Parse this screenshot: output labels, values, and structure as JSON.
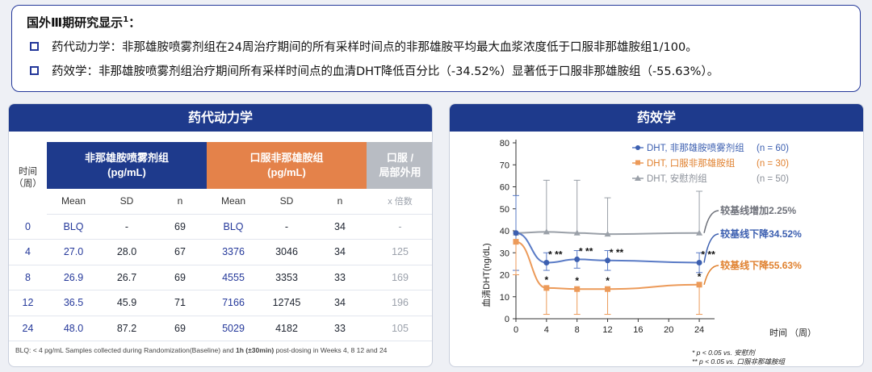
{
  "summary": {
    "title": "国外Ⅲ期研究显示",
    "title_sup": "1",
    "title_colon": "：",
    "bullets": [
      "药代动力学：非那雄胺喷雾剂组在24周治疗期间的所有采样时间点的非那雄胺平均最大血浆浓度低于口服非那雄胺组1/100。",
      "药效学：非那雄胺喷雾剂组治疗期间所有采样时间点的血清DHT降低百分比（-34.52%）显著低于口服非那雄胺组（-55.63%）。"
    ]
  },
  "pk": {
    "title": "药代动力学",
    "time_header": [
      "时间",
      "（周）"
    ],
    "group_spray": [
      "非那雄胺喷雾剂组",
      "(pg/mL)"
    ],
    "group_oral": [
      "口服非那雄胺组",
      "(pg/mL)"
    ],
    "group_ratio": [
      "口服 /",
      "局部外用"
    ],
    "subheaders": [
      "Mean",
      "SD",
      "n",
      "Mean",
      "SD",
      "n",
      "x 倍数"
    ],
    "rows": [
      {
        "time": "0",
        "s_mean": "BLQ",
        "s_sd": "-",
        "s_n": "69",
        "o_mean": "BLQ",
        "o_sd": "-",
        "o_n": "34",
        "ratio": "-"
      },
      {
        "time": "4",
        "s_mean": "27.0",
        "s_sd": "28.0",
        "s_n": "67",
        "o_mean": "3376",
        "o_sd": "3046",
        "o_n": "34",
        "ratio": "125"
      },
      {
        "time": "8",
        "s_mean": "26.9",
        "s_sd": "26.7",
        "s_n": "69",
        "o_mean": "4555",
        "o_sd": "3353",
        "o_n": "33",
        "ratio": "169"
      },
      {
        "time": "12",
        "s_mean": "36.5",
        "s_sd": "45.9",
        "s_n": "71",
        "o_mean": "7166",
        "o_sd": "12745",
        "o_n": "34",
        "ratio": "196"
      },
      {
        "time": "24",
        "s_mean": "48.0",
        "s_sd": "87.2",
        "s_n": "69",
        "o_mean": "5029",
        "o_sd": "4182",
        "o_n": "33",
        "ratio": "105"
      }
    ],
    "footnote_a": "BLQ: < 4 pg/mL Samples collected during Randomization(Baseline) and ",
    "footnote_b": "1h (±30min)",
    "footnote_c": " post-dosing in Weeks 4, 8 12 and 24"
  },
  "pd": {
    "title": "药效学",
    "ylabel": "血清DHT(ng/dL)",
    "xlabel": "时间  （周）",
    "footnote1": "* p < 0.05 vs. 安慰剂",
    "footnote2": "** p < 0.05 vs. 口服非那雄胺组",
    "colors": {
      "spray": "#5a7bc6",
      "oral": "#ec9a59",
      "placebo": "#9aa0a8",
      "spray_dark": "#3c5fb0",
      "oral_dark": "#e0812f"
    }
  },
  "chart_data": {
    "type": "line",
    "x": [
      0,
      4,
      8,
      12,
      24
    ],
    "xticks": [
      0,
      4,
      8,
      12,
      16,
      20,
      24
    ],
    "yticks": [
      0,
      10,
      20,
      30,
      40,
      50,
      60,
      70,
      80
    ],
    "ylim": [
      0,
      80
    ],
    "xlim": [
      0,
      26
    ],
    "series": [
      {
        "name": "DHT, 非那雄胺喷雾剂组",
        "n_label": "(n = 60)",
        "key": "spray",
        "values": [
          39,
          25.5,
          27,
          26.5,
          25.5
        ],
        "err_hi": [
          56,
          30,
          31,
          31,
          30
        ],
        "err_lo": [
          22,
          22,
          23,
          22,
          21
        ],
        "annotation": "较基线下降34.52%"
      },
      {
        "name": "DHT, 口服非那雄胺组",
        "n_label": "(n = 30)",
        "key": "oral",
        "values": [
          35,
          14,
          13.5,
          13.5,
          15.5
        ],
        "err_hi": [
          35,
          14,
          13.5,
          13.5,
          15.5
        ],
        "err_lo": [
          20,
          2,
          2,
          2,
          2
        ],
        "annotation": "较基线下降55.63%"
      },
      {
        "name": "DHT, 安慰剂组",
        "n_label": "(n = 50)",
        "key": "placebo",
        "values": [
          39,
          39.5,
          39,
          38.5,
          39
        ],
        "err_hi": [
          39,
          63,
          63,
          55,
          58
        ],
        "err_lo": [
          39,
          39.5,
          39,
          38.5,
          39
        ],
        "annotation": "较基线增加2.25%"
      }
    ],
    "significance": [
      {
        "x": 4,
        "label": "* **",
        "row": "spray"
      },
      {
        "x": 8,
        "label": "* **",
        "row": "spray"
      },
      {
        "x": 12,
        "label": "* **",
        "row": "spray"
      },
      {
        "x": 24,
        "label": "* **",
        "row": "spray"
      },
      {
        "x": 4,
        "label": "*",
        "row": "oral"
      },
      {
        "x": 8,
        "label": "*",
        "row": "oral"
      },
      {
        "x": 12,
        "label": "*",
        "row": "oral"
      },
      {
        "x": 24,
        "label": "*",
        "row": "oral"
      }
    ]
  }
}
